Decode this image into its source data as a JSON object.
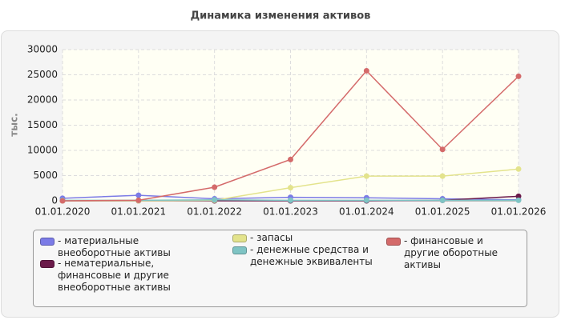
{
  "chart_data": {
    "type": "line",
    "title": "Динамика изменения активов",
    "y_label": "тыс.",
    "categories": [
      "01.01.2020",
      "01.01.2021",
      "01.01.2022",
      "01.01.2023",
      "01.01.2024",
      "01.01.2025",
      "01.01.2026"
    ],
    "ylim": [
      0,
      30000
    ],
    "yticks": [
      0,
      5000,
      10000,
      15000,
      20000,
      25000,
      30000
    ],
    "grid": true,
    "series": [
      {
        "name": "материальные внеоборотные активы",
        "color": "#7b7be6",
        "values": [
          500,
          1100,
          400,
          700,
          600,
          400,
          200
        ]
      },
      {
        "name": "нематериальные, финансовые и другие внеоборотные активы",
        "color": "#6b1a4a",
        "values": [
          0,
          0,
          0,
          0,
          0,
          100,
          900
        ]
      },
      {
        "name": "запасы",
        "color": "#e3e38c",
        "values": [
          0,
          0,
          100,
          2600,
          4900,
          4900,
          6300
        ]
      },
      {
        "name": "денежные средства и денежные эквиваленты",
        "color": "#7fc4c4",
        "values": [
          100,
          100,
          200,
          100,
          100,
          100,
          100
        ]
      },
      {
        "name": "финансовые и другие оборотные активы",
        "color": "#d46a6a",
        "values": [
          0,
          100,
          2700,
          8200,
          25800,
          10200,
          24700
        ]
      }
    ]
  }
}
